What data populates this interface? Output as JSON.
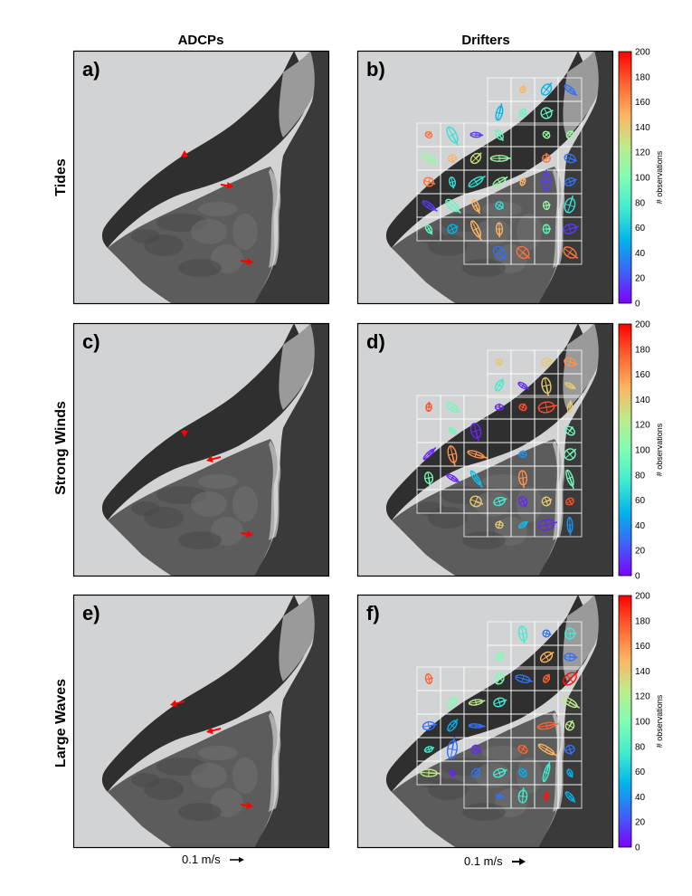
{
  "figure": {
    "column_titles": [
      "ADCPs",
      "Drifters"
    ],
    "row_titles": [
      "Tides",
      "Strong Winds",
      "Large Waves"
    ],
    "panel_labels": [
      "a)",
      "b)",
      "c)",
      "d)",
      "e)",
      "f)"
    ],
    "scale_labels": [
      "0.1 m/s",
      "0.1 m/s"
    ]
  },
  "colors": {
    "adcp_arrow": "#ff0000",
    "ocean": "#d2d3d5",
    "land_dark": "#333333",
    "grid": "#ffffff",
    "colormap": [
      "#7f00ff",
      "#3f61fa",
      "#01b3eb",
      "#41ecd0",
      "#7ffeb3",
      "#bfeb8b",
      "#ffb35f",
      "#ff6230",
      "#ff0000"
    ]
  },
  "chart_data": {
    "type": "scatter",
    "description_type": "current variance ellipses on satellite basemap",
    "colorbar": {
      "label": "# observations",
      "ticks": [
        0,
        20,
        40,
        60,
        80,
        100,
        120,
        140,
        160,
        180,
        200
      ],
      "range": [
        0,
        200
      ]
    },
    "adcp_scale": "0.1 m/s",
    "drifter_scale": "0.1 m/s",
    "panels": [
      {
        "label": "a)",
        "row": "Tides",
        "column": "ADCPs",
        "arrows": [
          {
            "station": 1,
            "dir": "up"
          },
          {
            "station": 2,
            "dir": "right"
          },
          {
            "station": 3,
            "dir": "right"
          }
        ]
      },
      {
        "label": "b)",
        "row": "Tides",
        "column": "Drifters",
        "ellipse_counts": [
          15,
          30,
          50,
          70,
          90,
          110,
          130,
          150,
          170,
          190
        ]
      },
      {
        "label": "c)",
        "row": "Strong Winds",
        "column": "ADCPs",
        "arrows": [
          {
            "station": 1,
            "dir": "down"
          },
          {
            "station": 2,
            "dir": "left"
          },
          {
            "station": 3,
            "dir": "right"
          }
        ]
      },
      {
        "label": "d)",
        "row": "Strong Winds",
        "column": "Drifters",
        "ellipse_counts": [
          10,
          40,
          55,
          75,
          95,
          140,
          160,
          180
        ]
      },
      {
        "label": "e)",
        "row": "Large Waves",
        "column": "ADCPs",
        "arrows": [
          {
            "station": 1,
            "dir": "left"
          },
          {
            "station": 2,
            "dir": "left"
          },
          {
            "station": 3,
            "dir": "right"
          }
        ]
      },
      {
        "label": "f)",
        "row": "Large Waves",
        "column": "Drifters",
        "ellipse_counts": [
          10,
          30,
          50,
          75,
          100,
          125,
          150,
          175,
          195
        ]
      }
    ]
  }
}
